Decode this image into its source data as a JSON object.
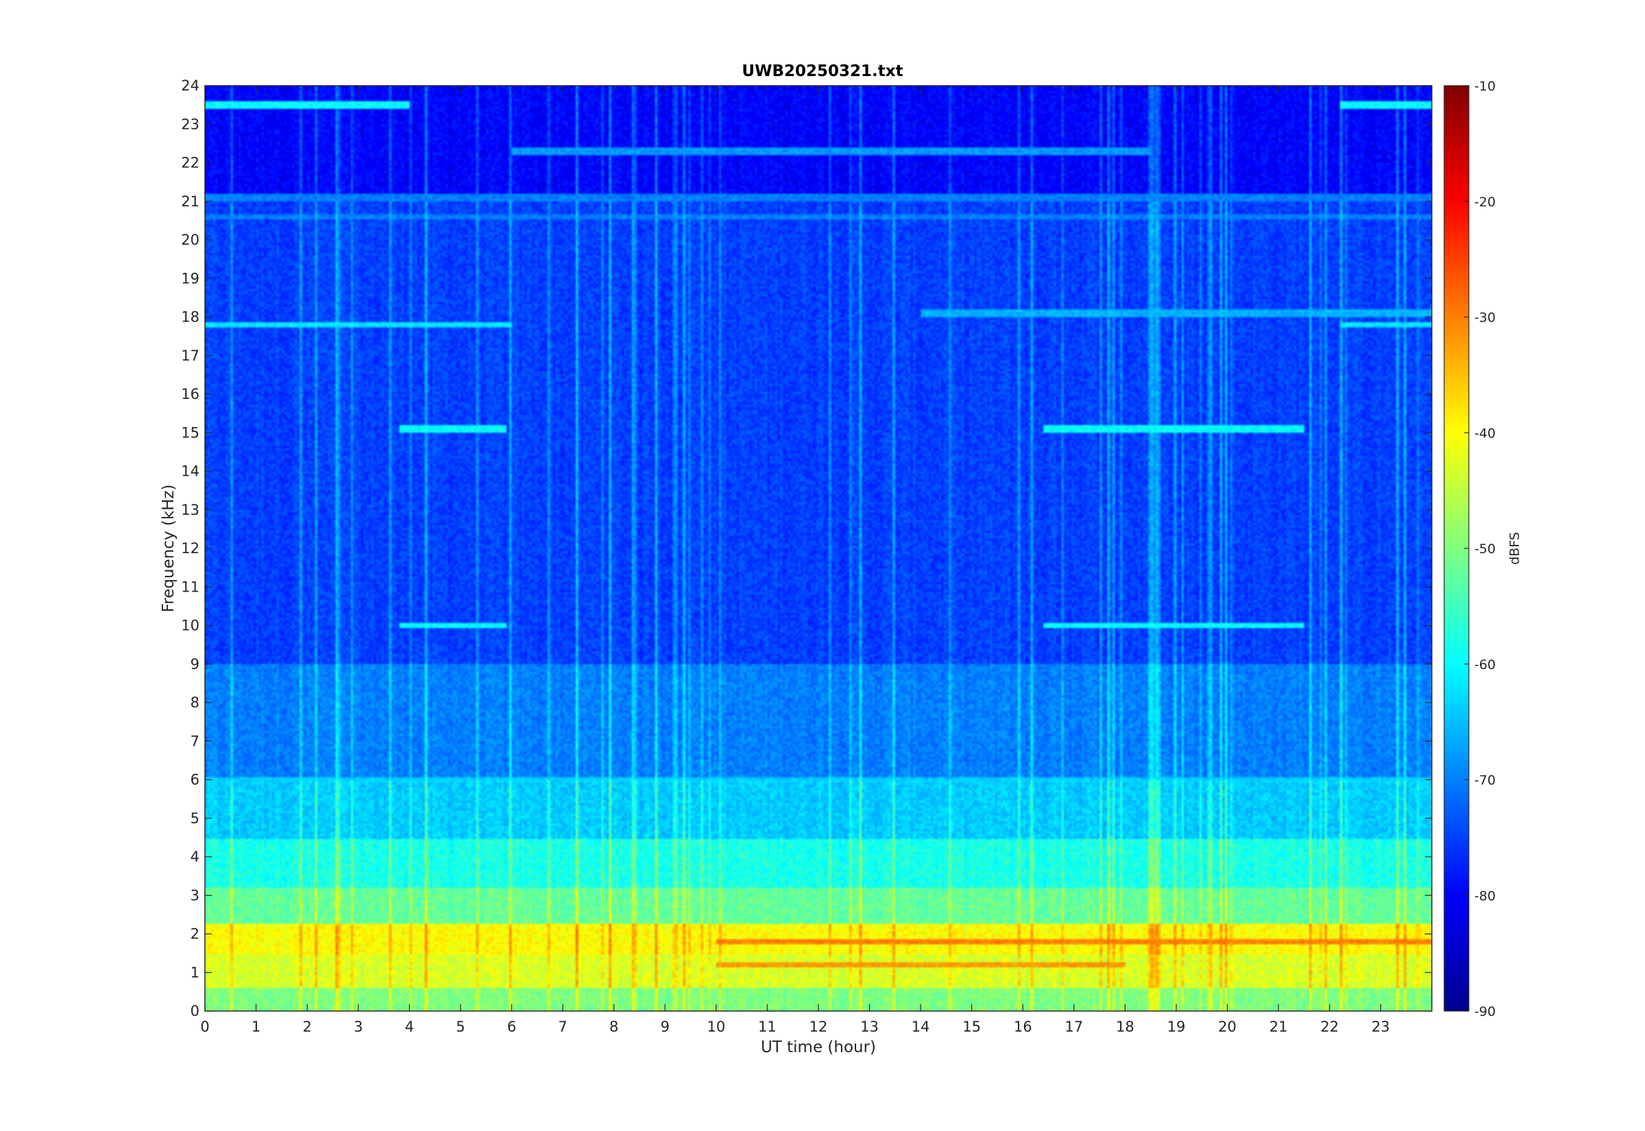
{
  "chart_data": {
    "type": "heatmap",
    "title": "UWB20250321.txt",
    "xlabel": "UT time (hour)",
    "ylabel": "Frequency (kHz)",
    "xlim": [
      0,
      24
    ],
    "ylim": [
      0,
      24
    ],
    "x_ticks": [
      "0",
      "1",
      "2",
      "3",
      "4",
      "5",
      "6",
      "7",
      "8",
      "9",
      "10",
      "11",
      "12",
      "13",
      "14",
      "15",
      "16",
      "17",
      "18",
      "19",
      "20",
      "21",
      "22",
      "23"
    ],
    "y_ticks": [
      "0",
      "1",
      "2",
      "3",
      "4",
      "5",
      "6",
      "7",
      "8",
      "9",
      "10",
      "11",
      "12",
      "13",
      "14",
      "15",
      "16",
      "17",
      "18",
      "19",
      "20",
      "21",
      "22",
      "23",
      "24"
    ],
    "colormap": "jet",
    "colorbar": {
      "label": "dBFS",
      "range": [
        -90,
        -10
      ],
      "ticks": [
        "-10",
        "-20",
        "-30",
        "-40",
        "-50",
        "-60",
        "-70",
        "-80",
        "-90"
      ]
    },
    "bands": [
      {
        "freq_khz": [
          0,
          0.6
        ],
        "level_dbfs": -50
      },
      {
        "freq_khz": [
          0.6,
          1.5
        ],
        "level_dbfs": -43
      },
      {
        "freq_khz": [
          1.5,
          2.3
        ],
        "level_dbfs": -40
      },
      {
        "freq_khz": [
          2.3,
          3.2
        ],
        "level_dbfs": -52
      },
      {
        "freq_khz": [
          3.2,
          4.5
        ],
        "level_dbfs": -58
      },
      {
        "freq_khz": [
          4.5,
          6.0
        ],
        "level_dbfs": -64
      },
      {
        "freq_khz": [
          6.0,
          9.0
        ],
        "level_dbfs": -70
      },
      {
        "freq_khz": [
          9.0,
          21.0
        ],
        "level_dbfs": -75
      },
      {
        "freq_khz": [
          21.0,
          24.0
        ],
        "level_dbfs": -80
      }
    ],
    "tones": [
      {
        "freq_khz": 17.8,
        "hours": [
          0,
          6.0
        ],
        "level_dbfs": -62
      },
      {
        "freq_khz": 17.8,
        "hours": [
          22.2,
          24
        ],
        "level_dbfs": -62
      },
      {
        "freq_khz": 18.1,
        "hours": [
          14,
          24
        ],
        "level_dbfs": -66
      },
      {
        "freq_khz": 22.3,
        "hours": [
          6,
          18.5
        ],
        "level_dbfs": -68
      },
      {
        "freq_khz": 20.6,
        "hours": [
          0,
          24
        ],
        "level_dbfs": -70
      },
      {
        "freq_khz": 21.1,
        "hours": [
          0,
          24
        ],
        "level_dbfs": -70
      },
      {
        "freq_khz": 15.1,
        "hours": [
          3.8,
          5.9
        ],
        "level_dbfs": -60
      },
      {
        "freq_khz": 15.1,
        "hours": [
          16.4,
          21.5
        ],
        "level_dbfs": -60
      },
      {
        "freq_khz": 10.0,
        "hours": [
          3.8,
          5.9
        ],
        "level_dbfs": -60
      },
      {
        "freq_khz": 10.0,
        "hours": [
          16.4,
          21.5
        ],
        "level_dbfs": -60
      },
      {
        "freq_khz": 6.0,
        "hours": [
          0,
          24
        ],
        "level_dbfs": -64
      },
      {
        "freq_khz": 1.8,
        "hours": [
          10,
          24
        ],
        "level_dbfs": -30
      },
      {
        "freq_khz": 1.2,
        "hours": [
          10,
          18
        ],
        "level_dbfs": -32
      },
      {
        "freq_khz": 23.5,
        "hours": [
          0,
          4
        ],
        "level_dbfs": -60
      },
      {
        "freq_khz": 23.5,
        "hours": [
          22.2,
          24
        ],
        "level_dbfs": -60
      }
    ]
  }
}
